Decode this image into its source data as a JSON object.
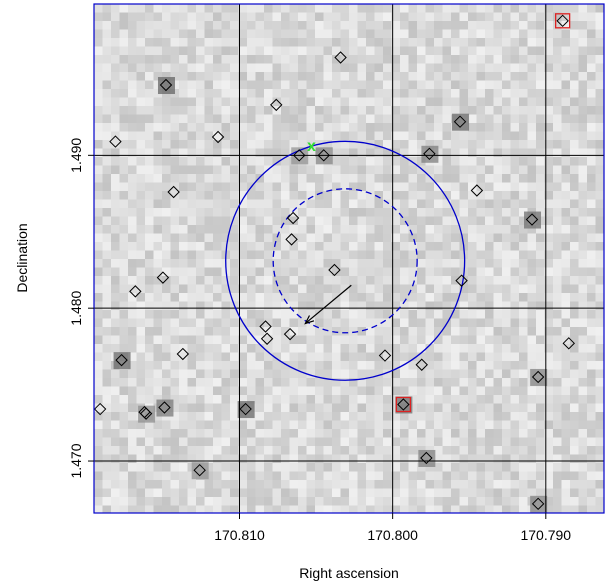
{
  "chart_data": {
    "type": "scatter",
    "xlabel": "Right ascension",
    "ylabel": "Declination",
    "xlim": [
      170.8195,
      170.7862
    ],
    "ylim": [
      1.4666,
      1.4999
    ],
    "x_ticks": [
      170.81,
      170.8,
      170.79
    ],
    "x_tick_labels": [
      "170.810",
      "170.800",
      "170.790"
    ],
    "y_ticks": [
      1.47,
      1.48,
      1.49
    ],
    "y_tick_labels": [
      "1.470",
      "1.480",
      "1.490"
    ],
    "x_gridlines": [
      170.81,
      170.8,
      170.79
    ],
    "y_gridlines": [
      1.47,
      1.48,
      1.49
    ],
    "grid": true,
    "background": "grayscale noise image",
    "colors": {
      "frame": "#0000cc",
      "circles": "#0000cc",
      "grid": "#000000",
      "markers": "#000000",
      "highlight_boxes": "#dd2222",
      "target_marker": "#33dd33"
    },
    "circles": [
      {
        "center": [
          170.8031,
          1.4831
        ],
        "radius_deg": 0.0078,
        "style": "solid"
      },
      {
        "center": [
          170.8031,
          1.4831
        ],
        "radius_deg": 0.0047,
        "style": "dashed"
      }
    ],
    "arrow": {
      "from": [
        170.8027,
        1.4815
      ],
      "to": [
        170.8057,
        1.479
      ]
    },
    "target": {
      "symbol": "x",
      "position": [
        170.8053,
        1.4906
      ]
    },
    "highlight_boxes": [
      [
        170.7889,
        1.4988
      ],
      [
        170.7993,
        1.4737
      ]
    ],
    "sources": [
      [
        170.7889,
        1.4988
      ],
      [
        170.8034,
        1.4964
      ],
      [
        170.8148,
        1.4946
      ],
      [
        170.8076,
        1.4933
      ],
      [
        170.8181,
        1.4909
      ],
      [
        170.8114,
        1.4912
      ],
      [
        170.7956,
        1.4922
      ],
      [
        170.8061,
        1.49
      ],
      [
        170.8045,
        1.49
      ],
      [
        170.7976,
        1.4901
      ],
      [
        170.8143,
        1.4876
      ],
      [
        170.7945,
        1.4877
      ],
      [
        170.7909,
        1.4858
      ],
      [
        170.8065,
        1.4859
      ],
      [
        170.8066,
        1.4845
      ],
      [
        170.815,
        1.482
      ],
      [
        170.8038,
        1.4825
      ],
      [
        170.7955,
        1.4818
      ],
      [
        170.8168,
        1.4811
      ],
      [
        170.8083,
        1.4788
      ],
      [
        170.8082,
        1.478
      ],
      [
        170.8067,
        1.4783
      ],
      [
        170.7885,
        1.4777
      ],
      [
        170.8137,
        1.477
      ],
      [
        170.8005,
        1.4769
      ],
      [
        170.7981,
        1.4763
      ],
      [
        170.8177,
        1.4766
      ],
      [
        170.7905,
        1.4755
      ],
      [
        170.7993,
        1.4737
      ],
      [
        170.8191,
        1.4734
      ],
      [
        170.8149,
        1.4735
      ],
      [
        170.8096,
        1.4734
      ],
      [
        170.8162,
        1.4732
      ],
      [
        170.8161,
        1.4731
      ],
      [
        170.7978,
        1.4702
      ],
      [
        170.8126,
        1.4694
      ],
      [
        170.7905,
        1.4672
      ]
    ]
  }
}
